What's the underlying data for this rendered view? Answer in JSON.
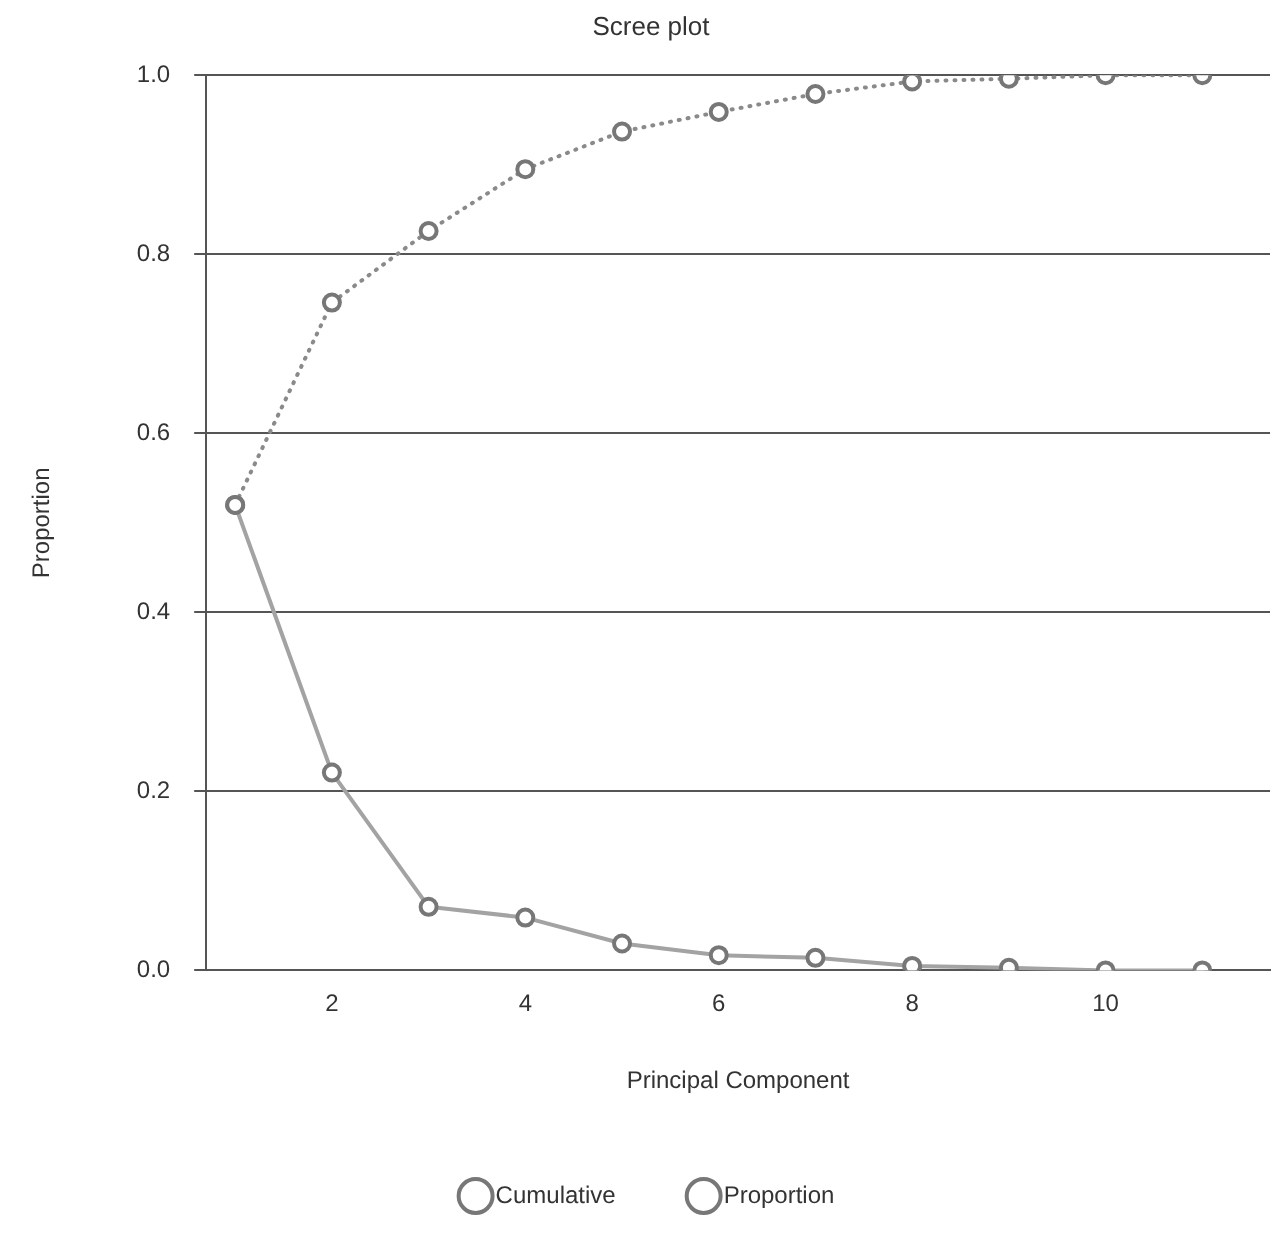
{
  "chart_data": {
    "type": "line",
    "title": "Scree plot",
    "xlabel": "Principal Component",
    "ylabel": "Proportion",
    "x": [
      1,
      2,
      3,
      4,
      5,
      6,
      7,
      8,
      9,
      10,
      11
    ],
    "xlim": [
      0.7,
      11.7
    ],
    "xticks": [
      2,
      4,
      6,
      8,
      10
    ],
    "ylim": [
      0,
      1.0
    ],
    "yticks": [
      {
        "value": 0,
        "label": "0.0"
      },
      {
        "value": 0.2,
        "label": "0.2"
      },
      {
        "value": 0.4,
        "label": "0.4"
      },
      {
        "value": 0.6,
        "label": "0.6"
      },
      {
        "value": 0.8,
        "label": "0.8"
      },
      {
        "value": 1.0,
        "label": "1.0"
      }
    ],
    "grid": "y",
    "legend": "bottom",
    "marker": "circle",
    "series": [
      {
        "name": "Cumulative",
        "color": "#8a8a8a",
        "line_style": "dotted",
        "values": [
          0.52,
          0.746,
          0.826,
          0.895,
          0.937,
          0.959,
          0.979,
          0.993,
          0.996,
          1.0,
          1.0
        ]
      },
      {
        "name": "Proportion",
        "color": "#a3a3a3",
        "line_style": "solid",
        "values": [
          0.52,
          0.221,
          0.071,
          0.059,
          0.03,
          0.017,
          0.014,
          0.005,
          0.003,
          0,
          0
        ]
      }
    ]
  }
}
